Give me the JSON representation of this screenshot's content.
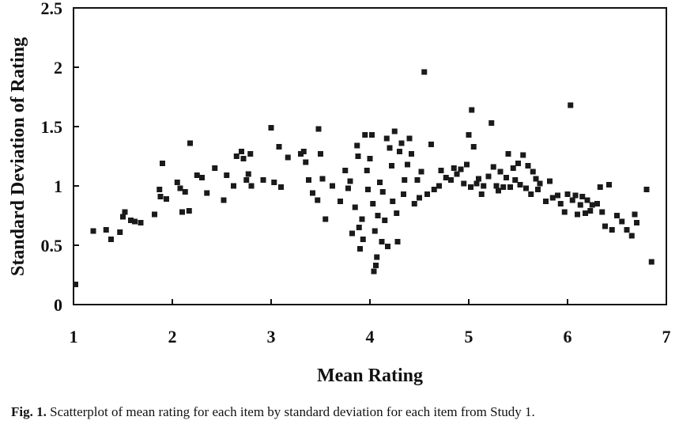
{
  "caption": {
    "label": "Fig. 1.",
    "text": "Scatterplot of mean rating for each item by standard deviation for each item from Study 1."
  },
  "chart_data": {
    "type": "scatter",
    "xlabel": "Mean Rating",
    "ylabel": "Standard Deviation of Rating",
    "xlim": [
      1,
      7
    ],
    "ylim": [
      0,
      2.5
    ],
    "xticks": [
      "1",
      "2",
      "3",
      "4",
      "5",
      "6",
      "7"
    ],
    "yticks": [
      "0",
      "0.5",
      "1",
      "1.5",
      "2",
      "2.5"
    ],
    "grid": false,
    "points": [
      [
        1.02,
        0.17
      ],
      [
        1.2,
        0.62
      ],
      [
        1.33,
        0.63
      ],
      [
        1.38,
        0.55
      ],
      [
        1.47,
        0.61
      ],
      [
        1.5,
        0.74
      ],
      [
        1.52,
        0.78
      ],
      [
        1.58,
        0.71
      ],
      [
        1.62,
        0.7
      ],
      [
        1.68,
        0.69
      ],
      [
        1.82,
        0.76
      ],
      [
        1.87,
        0.97
      ],
      [
        1.88,
        0.91
      ],
      [
        1.9,
        1.19
      ],
      [
        1.94,
        0.89
      ],
      [
        2.05,
        1.03
      ],
      [
        2.08,
        0.98
      ],
      [
        2.1,
        0.78
      ],
      [
        2.13,
        0.95
      ],
      [
        2.17,
        0.79
      ],
      [
        2.18,
        1.36
      ],
      [
        2.25,
        1.09
      ],
      [
        2.3,
        1.07
      ],
      [
        2.35,
        0.94
      ],
      [
        2.43,
        1.15
      ],
      [
        2.52,
        0.88
      ],
      [
        2.55,
        1.09
      ],
      [
        2.62,
        1.0
      ],
      [
        2.65,
        1.25
      ],
      [
        2.7,
        1.29
      ],
      [
        2.72,
        1.23
      ],
      [
        2.75,
        1.05
      ],
      [
        2.77,
        1.1
      ],
      [
        2.79,
        1.27
      ],
      [
        2.8,
        1.0
      ],
      [
        2.92,
        1.05
      ],
      [
        3.0,
        1.49
      ],
      [
        3.03,
        1.03
      ],
      [
        3.08,
        1.33
      ],
      [
        3.1,
        0.99
      ],
      [
        3.17,
        1.24
      ],
      [
        3.3,
        1.27
      ],
      [
        3.33,
        1.29
      ],
      [
        3.35,
        1.2
      ],
      [
        3.38,
        1.05
      ],
      [
        3.42,
        0.94
      ],
      [
        3.47,
        0.88
      ],
      [
        3.48,
        1.48
      ],
      [
        3.5,
        1.27
      ],
      [
        3.52,
        1.06
      ],
      [
        3.55,
        0.72
      ],
      [
        3.62,
        1.0
      ],
      [
        3.7,
        0.87
      ],
      [
        3.75,
        1.13
      ],
      [
        3.78,
        0.98
      ],
      [
        3.8,
        1.04
      ],
      [
        3.82,
        0.6
      ],
      [
        3.85,
        0.82
      ],
      [
        3.87,
        1.34
      ],
      [
        3.88,
        1.25
      ],
      [
        3.89,
        0.65
      ],
      [
        3.9,
        0.47
      ],
      [
        3.92,
        0.72
      ],
      [
        3.93,
        0.55
      ],
      [
        3.95,
        1.43
      ],
      [
        3.97,
        1.13
      ],
      [
        3.98,
        0.97
      ],
      [
        4.0,
        1.23
      ],
      [
        4.02,
        1.43
      ],
      [
        4.03,
        0.85
      ],
      [
        4.04,
        0.28
      ],
      [
        4.05,
        0.62
      ],
      [
        4.06,
        0.33
      ],
      [
        4.07,
        0.4
      ],
      [
        4.08,
        0.75
      ],
      [
        4.1,
        1.03
      ],
      [
        4.12,
        0.53
      ],
      [
        4.13,
        0.95
      ],
      [
        4.15,
        0.71
      ],
      [
        4.17,
        1.4
      ],
      [
        4.18,
        0.49
      ],
      [
        4.2,
        1.32
      ],
      [
        4.22,
        1.17
      ],
      [
        4.23,
        0.87
      ],
      [
        4.25,
        1.46
      ],
      [
        4.27,
        0.77
      ],
      [
        4.28,
        0.53
      ],
      [
        4.3,
        1.29
      ],
      [
        4.32,
        1.36
      ],
      [
        4.34,
        0.93
      ],
      [
        4.35,
        1.05
      ],
      [
        4.38,
        1.18
      ],
      [
        4.4,
        1.4
      ],
      [
        4.42,
        1.27
      ],
      [
        4.45,
        0.85
      ],
      [
        4.48,
        1.05
      ],
      [
        4.5,
        0.9
      ],
      [
        4.52,
        1.12
      ],
      [
        4.55,
        1.96
      ],
      [
        4.58,
        0.93
      ],
      [
        4.62,
        1.35
      ],
      [
        4.65,
        0.97
      ],
      [
        4.7,
        1.0
      ],
      [
        4.72,
        1.13
      ],
      [
        4.77,
        1.07
      ],
      [
        4.82,
        1.05
      ],
      [
        4.85,
        1.15
      ],
      [
        4.88,
        1.1
      ],
      [
        4.92,
        1.14
      ],
      [
        4.95,
        1.02
      ],
      [
        4.98,
        1.18
      ],
      [
        5.0,
        1.43
      ],
      [
        5.02,
        0.99
      ],
      [
        5.03,
        1.64
      ],
      [
        5.05,
        1.33
      ],
      [
        5.08,
        1.02
      ],
      [
        5.1,
        1.06
      ],
      [
        5.13,
        0.93
      ],
      [
        5.15,
        1.0
      ],
      [
        5.2,
        1.08
      ],
      [
        5.23,
        1.53
      ],
      [
        5.25,
        1.16
      ],
      [
        5.28,
        1.0
      ],
      [
        5.3,
        0.96
      ],
      [
        5.32,
        1.12
      ],
      [
        5.35,
        0.99
      ],
      [
        5.38,
        1.07
      ],
      [
        5.4,
        1.27
      ],
      [
        5.42,
        0.99
      ],
      [
        5.45,
        1.15
      ],
      [
        5.47,
        1.05
      ],
      [
        5.5,
        1.19
      ],
      [
        5.52,
        1.01
      ],
      [
        5.55,
        1.26
      ],
      [
        5.58,
        0.98
      ],
      [
        5.6,
        1.17
      ],
      [
        5.63,
        0.93
      ],
      [
        5.65,
        1.12
      ],
      [
        5.68,
        1.06
      ],
      [
        5.7,
        0.97
      ],
      [
        5.72,
        1.02
      ],
      [
        5.78,
        0.87
      ],
      [
        5.82,
        1.04
      ],
      [
        5.85,
        0.9
      ],
      [
        5.9,
        0.92
      ],
      [
        5.93,
        0.85
      ],
      [
        5.97,
        0.78
      ],
      [
        6.0,
        0.93
      ],
      [
        6.03,
        1.68
      ],
      [
        6.05,
        0.88
      ],
      [
        6.08,
        0.92
      ],
      [
        6.1,
        0.76
      ],
      [
        6.13,
        0.84
      ],
      [
        6.15,
        0.91
      ],
      [
        6.18,
        0.77
      ],
      [
        6.2,
        0.88
      ],
      [
        6.23,
        0.79
      ],
      [
        6.25,
        0.84
      ],
      [
        6.3,
        0.85
      ],
      [
        6.33,
        0.99
      ],
      [
        6.35,
        0.78
      ],
      [
        6.38,
        0.66
      ],
      [
        6.42,
        1.01
      ],
      [
        6.45,
        0.63
      ],
      [
        6.5,
        0.75
      ],
      [
        6.55,
        0.7
      ],
      [
        6.6,
        0.63
      ],
      [
        6.65,
        0.58
      ],
      [
        6.68,
        0.76
      ],
      [
        6.7,
        0.69
      ],
      [
        6.8,
        0.97
      ],
      [
        6.85,
        0.36
      ]
    ]
  }
}
